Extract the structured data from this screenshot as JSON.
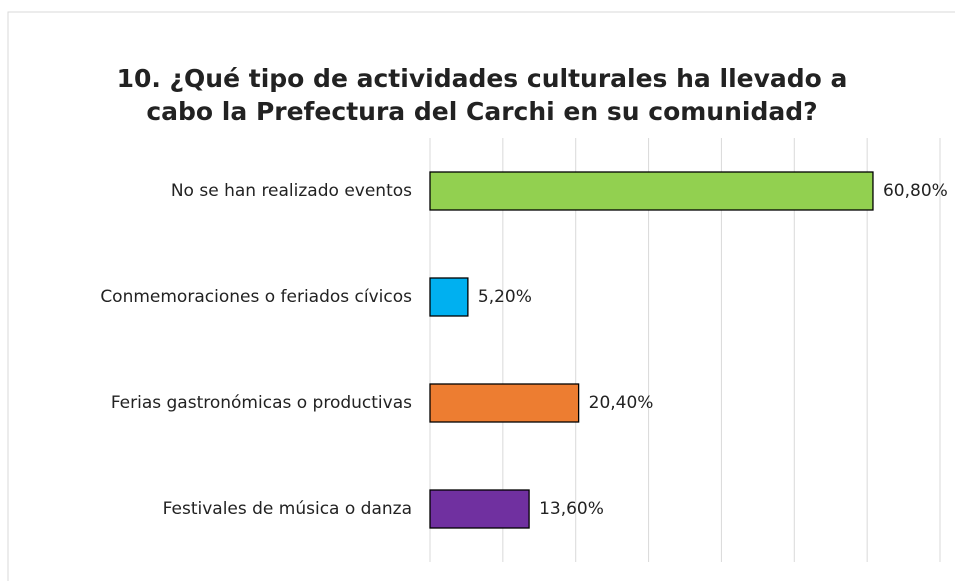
{
  "chart_data": {
    "type": "bar",
    "orientation": "horizontal",
    "title": [
      "10. ¿Qué tipo de actividades culturales ha llevado a",
      "cabo la Prefectura del Carchi en su comunidad?"
    ],
    "categories": [
      "No se han realizado eventos",
      "Conmemoraciones o feriados cívicos",
      "Ferias gastronómicas o productivas",
      "Festivales de música o danza"
    ],
    "values": [
      60.8,
      5.2,
      20.4,
      13.6
    ],
    "value_labels": [
      "60,80%",
      "5,20%",
      "20,40%",
      "13,60%"
    ],
    "colors": [
      "#92d050",
      "#00b0f0",
      "#ed7d31",
      "#7030a0"
    ],
    "xlim": [
      0,
      70
    ],
    "xticks": [
      0,
      10,
      20,
      30,
      40,
      50,
      60,
      70
    ],
    "grid": true
  }
}
